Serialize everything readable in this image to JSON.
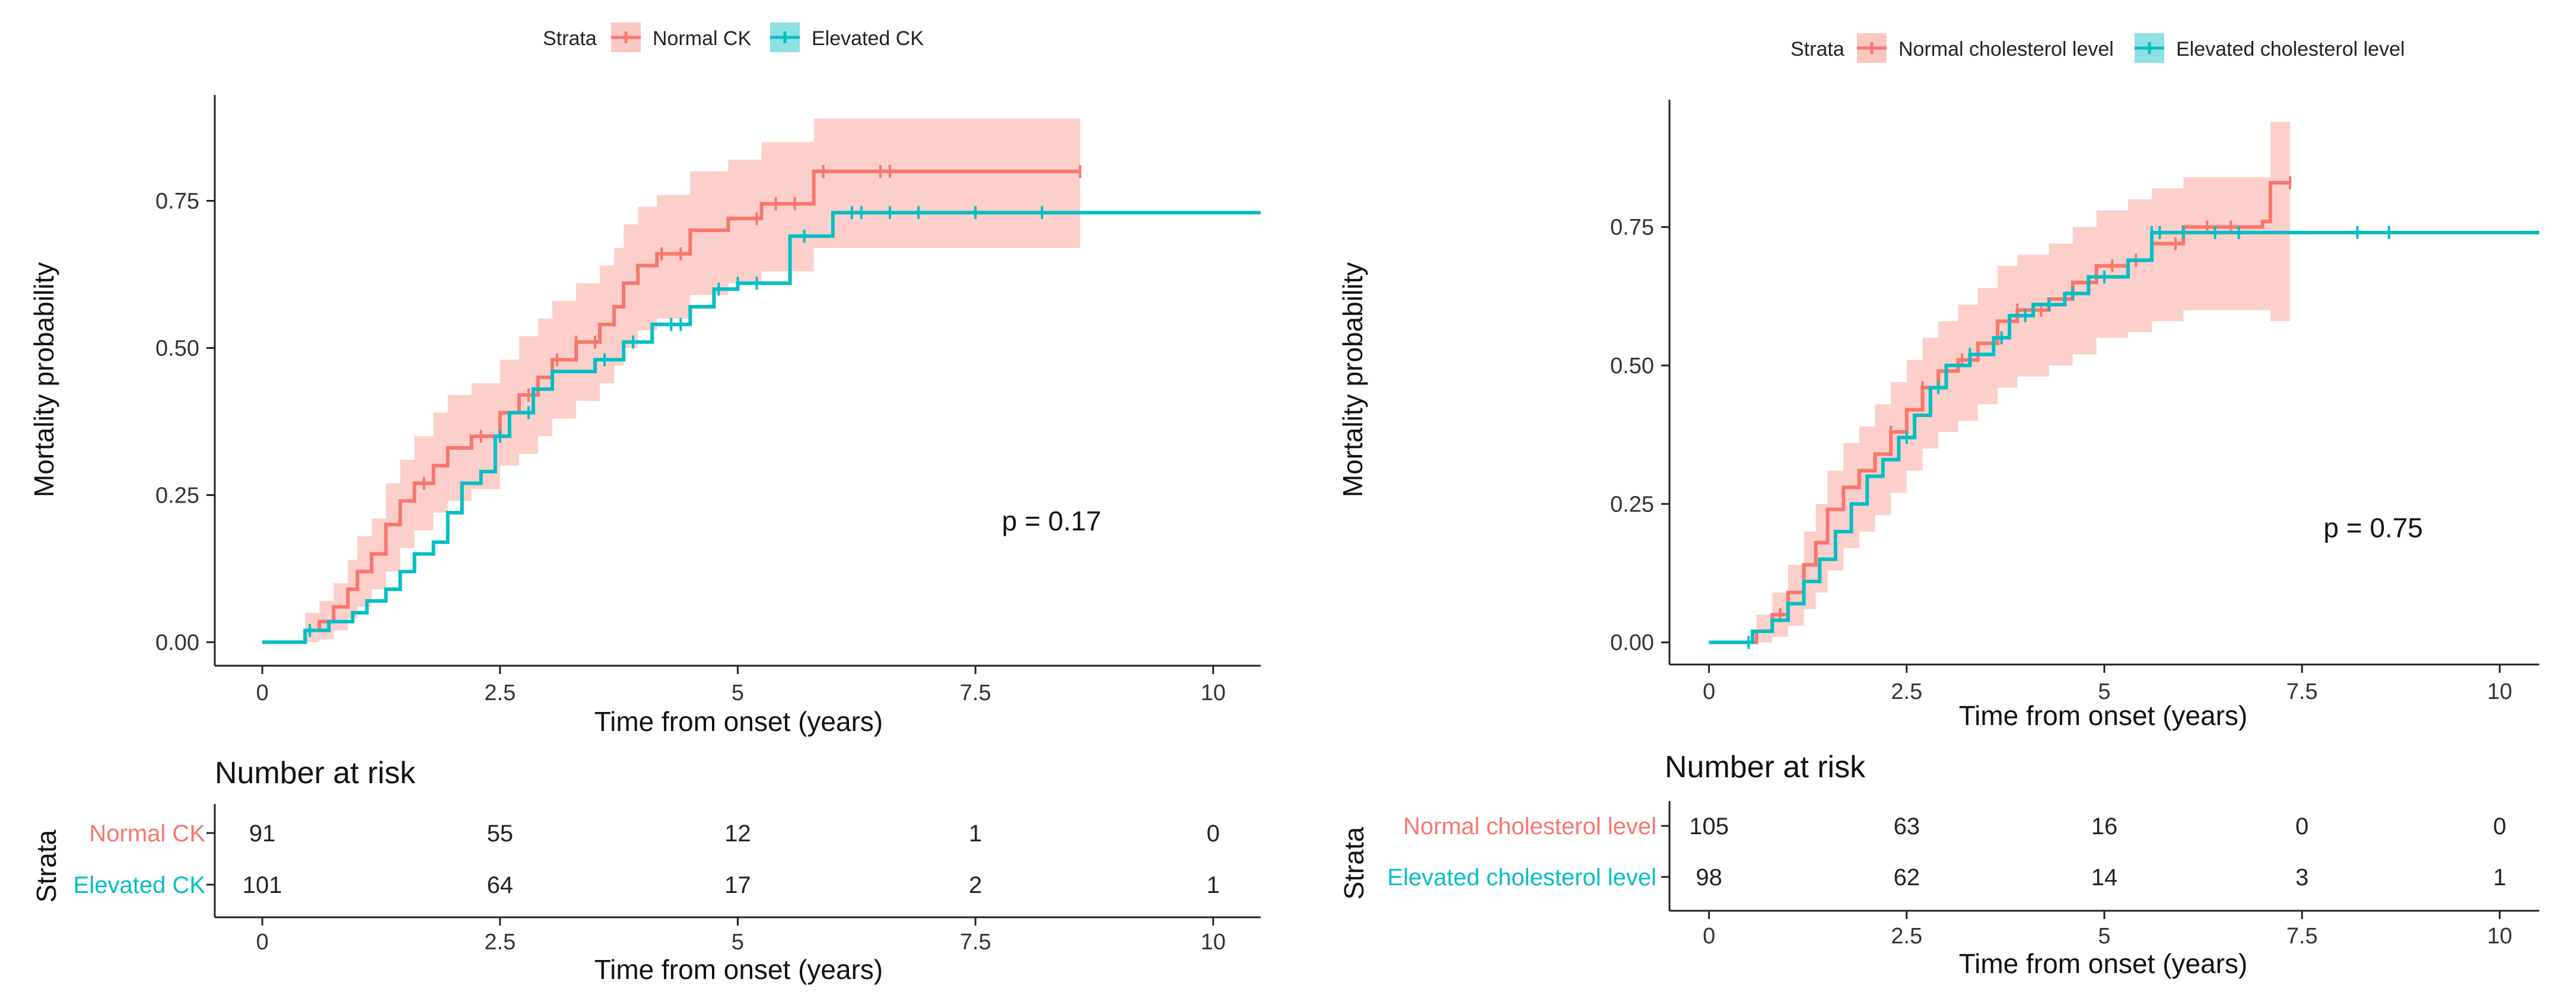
{
  "colors": {
    "normal": "#F8766D",
    "elevated": "#00BFC4",
    "normal_band": "#FBC7C2",
    "elevated_band": "#8FE0E2",
    "axis": "#222222"
  },
  "chart_data": [
    {
      "type": "line",
      "subtype": "kaplan-meier",
      "legend": {
        "title": "Strata",
        "position": "top"
      },
      "xlabel": "Time from onset (years)",
      "ylabel": "Mortality probability",
      "xlim": [
        -0.5,
        10.5
      ],
      "ylim": [
        -0.04,
        0.93
      ],
      "xticks": [
        0,
        2.5,
        5,
        7.5,
        10
      ],
      "xtick_labels": [
        "0",
        "2.5",
        "5",
        "7.5",
        "10"
      ],
      "yticks": [
        0,
        0.25,
        0.5,
        0.75
      ],
      "ytick_labels": [
        "0.00",
        "0.25",
        "0.50",
        "0.75"
      ],
      "annotation": "p = 0.17",
      "annotation_pos": [
        8.3,
        0.19
      ],
      "series": [
        {
          "name": "Normal CK",
          "color_key": "normal",
          "steps": [
            [
              0,
              0
            ],
            [
              0.35,
              0
            ],
            [
              0.45,
              0.02
            ],
            [
              0.6,
              0.035
            ],
            [
              0.75,
              0.06
            ],
            [
              0.9,
              0.09
            ],
            [
              1.0,
              0.12
            ],
            [
              1.15,
              0.15
            ],
            [
              1.3,
              0.2
            ],
            [
              1.45,
              0.24
            ],
            [
              1.6,
              0.27
            ],
            [
              1.8,
              0.3
            ],
            [
              1.95,
              0.33
            ],
            [
              2.2,
              0.35
            ],
            [
              2.5,
              0.39
            ],
            [
              2.7,
              0.42
            ],
            [
              2.9,
              0.45
            ],
            [
              3.05,
              0.48
            ],
            [
              3.3,
              0.51
            ],
            [
              3.55,
              0.54
            ],
            [
              3.7,
              0.57
            ],
            [
              3.8,
              0.61
            ],
            [
              3.95,
              0.64
            ],
            [
              4.15,
              0.66
            ],
            [
              4.5,
              0.7
            ],
            [
              4.9,
              0.72
            ],
            [
              5.25,
              0.745
            ],
            [
              5.8,
              0.8
            ],
            [
              8.6,
              0.8
            ]
          ],
          "band": [
            [
              0,
              0,
              0
            ],
            [
              0.35,
              0,
              0
            ],
            [
              0.45,
              0,
              0.05
            ],
            [
              0.6,
              0.005,
              0.07
            ],
            [
              0.75,
              0.02,
              0.1
            ],
            [
              0.9,
              0.04,
              0.14
            ],
            [
              1.0,
              0.06,
              0.18
            ],
            [
              1.15,
              0.09,
              0.21
            ],
            [
              1.3,
              0.12,
              0.27
            ],
            [
              1.45,
              0.16,
              0.31
            ],
            [
              1.6,
              0.19,
              0.35
            ],
            [
              1.8,
              0.22,
              0.39
            ],
            [
              1.95,
              0.24,
              0.42
            ],
            [
              2.2,
              0.26,
              0.44
            ],
            [
              2.5,
              0.3,
              0.48
            ],
            [
              2.7,
              0.32,
              0.52
            ],
            [
              2.9,
              0.35,
              0.55
            ],
            [
              3.05,
              0.38,
              0.58
            ],
            [
              3.3,
              0.41,
              0.61
            ],
            [
              3.55,
              0.44,
              0.64
            ],
            [
              3.7,
              0.47,
              0.67
            ],
            [
              3.8,
              0.5,
              0.71
            ],
            [
              3.95,
              0.53,
              0.74
            ],
            [
              4.15,
              0.55,
              0.76
            ],
            [
              4.5,
              0.59,
              0.8
            ],
            [
              4.9,
              0.61,
              0.82
            ],
            [
              5.25,
              0.63,
              0.85
            ],
            [
              5.8,
              0.67,
              0.89
            ],
            [
              8.6,
              0.625,
              0.89
            ]
          ],
          "censor": [
            1.7,
            2.3,
            2.8,
            3.1,
            3.3,
            3.5,
            4.2,
            4.4,
            5.2,
            5.4,
            5.6,
            5.9,
            6.5,
            6.6,
            8.6
          ]
        },
        {
          "name": "Elevated CK",
          "color_key": "elevated",
          "steps": [
            [
              0,
              0
            ],
            [
              0.35,
              0
            ],
            [
              0.45,
              0.02
            ],
            [
              0.7,
              0.035
            ],
            [
              0.95,
              0.05
            ],
            [
              1.1,
              0.07
            ],
            [
              1.3,
              0.09
            ],
            [
              1.45,
              0.12
            ],
            [
              1.6,
              0.15
            ],
            [
              1.8,
              0.17
            ],
            [
              1.95,
              0.22
            ],
            [
              2.1,
              0.27
            ],
            [
              2.3,
              0.29
            ],
            [
              2.45,
              0.35
            ],
            [
              2.6,
              0.39
            ],
            [
              2.85,
              0.43
            ],
            [
              3.05,
              0.46
            ],
            [
              3.5,
              0.48
            ],
            [
              3.8,
              0.51
            ],
            [
              4.1,
              0.54
            ],
            [
              4.5,
              0.57
            ],
            [
              4.75,
              0.6
            ],
            [
              5.0,
              0.61
            ],
            [
              5.55,
              0.69
            ],
            [
              6.0,
              0.73
            ],
            [
              10.5,
              0.73
            ]
          ],
          "band": [],
          "censor": [
            0.5,
            2.5,
            2.8,
            3.6,
            3.9,
            4.3,
            4.4,
            4.8,
            5.0,
            5.2,
            5.7,
            6.2,
            6.3,
            6.6,
            6.9,
            7.5,
            8.2
          ]
        }
      ],
      "risk_table": {
        "title": "Number at risk",
        "ylabel": "Strata",
        "xlabel": "Time from onset (years)",
        "labels": [
          "Normal CK",
          "Elevated CK"
        ],
        "rows": [
          [
            "91",
            "55",
            "12",
            "1",
            "0"
          ],
          [
            "101",
            "64",
            "17",
            "2",
            "1"
          ]
        ]
      }
    },
    {
      "type": "line",
      "subtype": "kaplan-meier",
      "legend": {
        "title": "Strata",
        "position": "top"
      },
      "xlabel": "Time from onset (years)",
      "ylabel": "Mortality probability",
      "xlim": [
        -0.5,
        10.5
      ],
      "ylim": [
        -0.04,
        0.98
      ],
      "xticks": [
        0,
        2.5,
        5,
        7.5,
        10
      ],
      "xtick_labels": [
        "0",
        "2.5",
        "5",
        "7.5",
        "10"
      ],
      "yticks": [
        0,
        0.25,
        0.5,
        0.75
      ],
      "ytick_labels": [
        "0.00",
        "0.25",
        "0.50",
        "0.75"
      ],
      "annotation": "p = 0.75",
      "annotation_pos": [
        8.4,
        0.19
      ],
      "series": [
        {
          "name": "Normal cholesterol level",
          "color_key": "normal",
          "steps": [
            [
              0,
              0
            ],
            [
              0.4,
              0
            ],
            [
              0.6,
              0.02
            ],
            [
              0.8,
              0.05
            ],
            [
              1.0,
              0.09
            ],
            [
              1.2,
              0.14
            ],
            [
              1.35,
              0.18
            ],
            [
              1.5,
              0.24
            ],
            [
              1.7,
              0.28
            ],
            [
              1.9,
              0.31
            ],
            [
              2.1,
              0.34
            ],
            [
              2.3,
              0.38
            ],
            [
              2.5,
              0.42
            ],
            [
              2.7,
              0.46
            ],
            [
              2.9,
              0.49
            ],
            [
              3.15,
              0.51
            ],
            [
              3.4,
              0.54
            ],
            [
              3.65,
              0.58
            ],
            [
              3.9,
              0.6
            ],
            [
              4.3,
              0.62
            ],
            [
              4.6,
              0.65
            ],
            [
              4.9,
              0.68
            ],
            [
              5.3,
              0.69
            ],
            [
              5.6,
              0.72
            ],
            [
              6.0,
              0.75
            ],
            [
              7.0,
              0.76
            ],
            [
              7.1,
              0.83
            ],
            [
              7.35,
              0.83
            ]
          ],
          "band": [
            [
              0,
              0,
              0
            ],
            [
              0.4,
              0,
              0
            ],
            [
              0.6,
              0,
              0.05
            ],
            [
              0.8,
              0.01,
              0.09
            ],
            [
              1.0,
              0.03,
              0.14
            ],
            [
              1.2,
              0.06,
              0.2
            ],
            [
              1.35,
              0.09,
              0.25
            ],
            [
              1.5,
              0.13,
              0.31
            ],
            [
              1.7,
              0.17,
              0.36
            ],
            [
              1.9,
              0.2,
              0.39
            ],
            [
              2.1,
              0.23,
              0.43
            ],
            [
              2.3,
              0.27,
              0.47
            ],
            [
              2.5,
              0.31,
              0.51
            ],
            [
              2.7,
              0.35,
              0.55
            ],
            [
              2.9,
              0.38,
              0.58
            ],
            [
              3.15,
              0.4,
              0.61
            ],
            [
              3.4,
              0.43,
              0.64
            ],
            [
              3.65,
              0.46,
              0.68
            ],
            [
              3.9,
              0.48,
              0.7
            ],
            [
              4.3,
              0.5,
              0.72
            ],
            [
              4.6,
              0.52,
              0.75
            ],
            [
              4.9,
              0.55,
              0.78
            ],
            [
              5.3,
              0.56,
              0.8
            ],
            [
              5.6,
              0.58,
              0.82
            ],
            [
              6.0,
              0.6,
              0.84
            ],
            [
              7.0,
              0.6,
              0.84
            ],
            [
              7.1,
              0.58,
              0.94
            ],
            [
              7.35,
              0.58,
              0.94
            ]
          ],
          "censor": [
            0.9,
            2.3,
            2.7,
            3.2,
            3.9,
            4.2,
            4.5,
            5.1,
            5.4,
            5.6,
            5.9,
            6.3,
            6.6,
            7.35
          ]
        },
        {
          "name": "Elevated cholesterol level",
          "color_key": "elevated",
          "steps": [
            [
              0,
              0
            ],
            [
              0.35,
              0
            ],
            [
              0.55,
              0.02
            ],
            [
              0.8,
              0.04
            ],
            [
              1.0,
              0.07
            ],
            [
              1.2,
              0.11
            ],
            [
              1.4,
              0.15
            ],
            [
              1.6,
              0.2
            ],
            [
              1.8,
              0.25
            ],
            [
              2.0,
              0.3
            ],
            [
              2.2,
              0.33
            ],
            [
              2.4,
              0.37
            ],
            [
              2.6,
              0.41
            ],
            [
              2.8,
              0.46
            ],
            [
              3.0,
              0.5
            ],
            [
              3.3,
              0.52
            ],
            [
              3.6,
              0.55
            ],
            [
              3.8,
              0.59
            ],
            [
              4.1,
              0.61
            ],
            [
              4.5,
              0.63
            ],
            [
              4.8,
              0.66
            ],
            [
              5.3,
              0.69
            ],
            [
              5.6,
              0.74
            ],
            [
              10.5,
              0.74
            ]
          ],
          "band": [],
          "censor": [
            0.5,
            2.5,
            2.9,
            3.3,
            3.7,
            4.0,
            4.3,
            4.6,
            5.0,
            5.6,
            5.7,
            6.0,
            6.4,
            6.7,
            8.2,
            8.6
          ]
        }
      ],
      "risk_table": {
        "title": "Number at risk",
        "ylabel": "Strata",
        "xlabel": "Time from onset (years)",
        "labels": [
          "Normal cholesterol level",
          "Elevated cholesterol level"
        ],
        "rows": [
          [
            "105",
            "63",
            "16",
            "0",
            "0"
          ],
          [
            "98",
            "62",
            "14",
            "3",
            "1"
          ]
        ]
      }
    }
  ]
}
